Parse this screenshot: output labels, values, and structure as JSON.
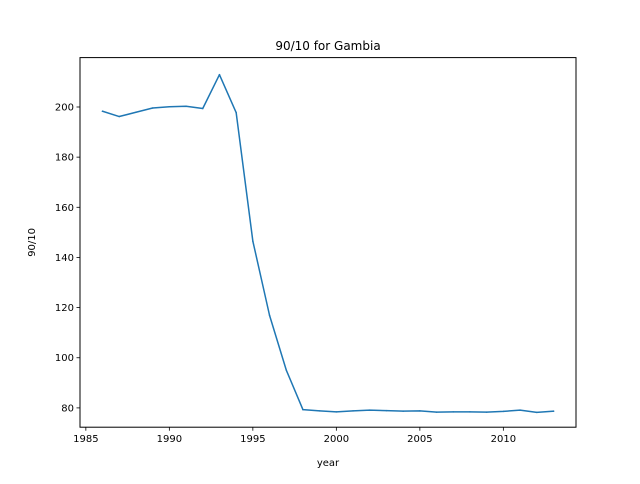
{
  "chart_data": {
    "type": "line",
    "title": "90/10 for Gambia",
    "xlabel": "year",
    "ylabel": "90/10",
    "xlim": [
      1984.65,
      2014.35
    ],
    "ylim": [
      72.3,
      219.7
    ],
    "xticks": [
      1985,
      1990,
      1995,
      2000,
      2005,
      2010
    ],
    "yticks": [
      80,
      100,
      120,
      140,
      160,
      180,
      200
    ],
    "grid": false,
    "legend": "none",
    "series": [
      {
        "color": "#1f77b4",
        "x": [
          1986,
          1987,
          1988,
          1989,
          1990,
          1991,
          1992,
          1993,
          1994,
          1995,
          1996,
          1997,
          1998,
          1999,
          2000,
          2001,
          2002,
          2003,
          2004,
          2005,
          2006,
          2007,
          2008,
          2009,
          2010,
          2011,
          2012,
          2013
        ],
        "y": [
          198.3,
          196.2,
          197.9,
          199.6,
          200.1,
          200.3,
          199.4,
          212.9,
          197.8,
          146.5,
          116.9,
          95.1,
          79.3,
          78.8,
          78.4,
          78.8,
          79.1,
          78.9,
          78.7,
          78.8,
          78.3,
          78.4,
          78.4,
          78.3,
          78.6,
          79.1,
          78.2,
          78.7
        ]
      }
    ]
  }
}
